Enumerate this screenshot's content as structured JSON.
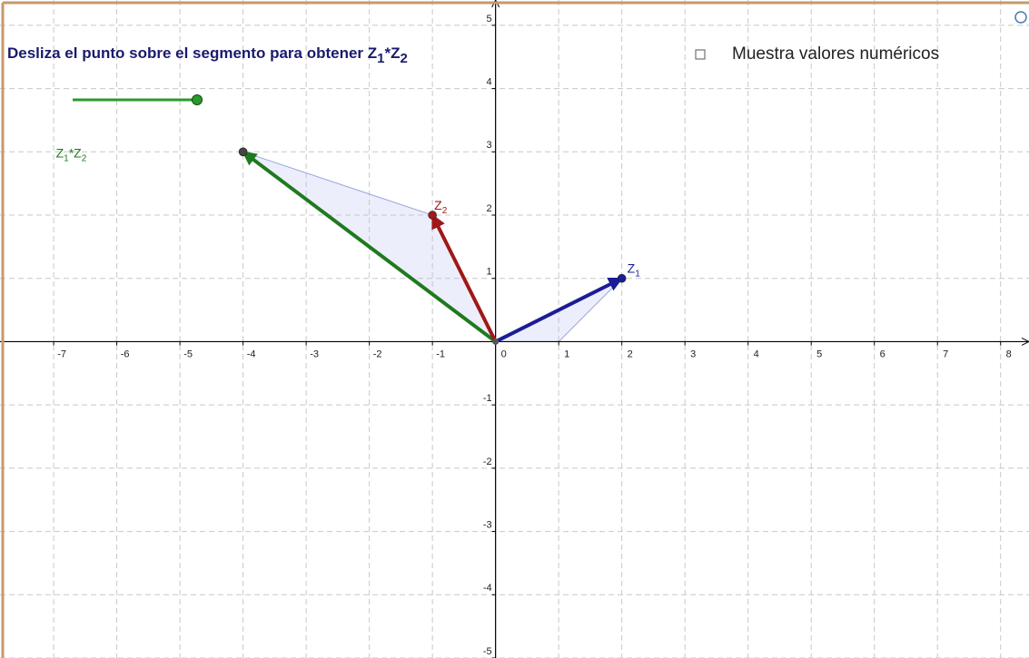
{
  "title": [
    "Desliza el punto sobre el segmento para obtener Z",
    "1",
    "*Z",
    "2"
  ],
  "checkbox": {
    "label": "Muestra valores numéricos",
    "checked": false
  },
  "axes": {
    "xlim": [
      -7.85,
      8.45
    ],
    "ylim": [
      -5.0,
      5.4
    ],
    "xticks": [
      -7,
      -6,
      -5,
      -4,
      -3,
      -2,
      -1,
      0,
      1,
      2,
      3,
      4,
      5,
      6,
      7,
      8
    ],
    "yticks": [
      -5,
      -4,
      -3,
      -2,
      -1,
      1,
      2,
      3,
      4,
      5
    ]
  },
  "vectors": [
    {
      "label": [
        "Z",
        "1"
      ],
      "x": 2,
      "y": 1,
      "color": "#1c1c96",
      "point_color": "#1c1c96"
    },
    {
      "label": [
        "Z",
        "2"
      ],
      "x": -1,
      "y": 2,
      "color": "#a01818",
      "point_color": "#a01818"
    },
    {
      "label": [
        "Z",
        "1",
        "*Z",
        "2"
      ],
      "x": -4,
      "y": 3,
      "color": "#1f7a1f",
      "point_color": "#444444"
    }
  ],
  "reference_point": {
    "x": 1,
    "y": 0
  }
}
